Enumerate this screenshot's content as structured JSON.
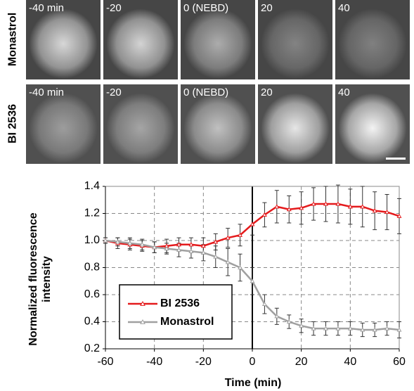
{
  "panels": {
    "rows": [
      {
        "label": "Monastrol",
        "frames": [
          "-40 min",
          "-20",
          "0 (NEBD)",
          "20",
          "40"
        ]
      },
      {
        "label": "BI 2536",
        "frames": [
          "-40 min",
          "-20",
          "0 (NEBD)",
          "20",
          "40"
        ]
      }
    ]
  },
  "chart_data": {
    "type": "line",
    "x_label": "Time (min)",
    "y_label": "Normalized fluorescence intensity",
    "x": [
      -60,
      -55,
      -50,
      -45,
      -40,
      -35,
      -30,
      -25,
      -20,
      -15,
      -10,
      -5,
      0,
      5,
      10,
      15,
      20,
      25,
      30,
      35,
      40,
      45,
      50,
      55,
      60
    ],
    "series": [
      {
        "name": "BI 2536",
        "color": "#e41a1c",
        "values": [
          1.0,
          0.98,
          0.97,
          0.96,
          0.95,
          0.96,
          0.97,
          0.97,
          0.96,
          0.99,
          1.02,
          1.04,
          1.12,
          1.19,
          1.25,
          1.23,
          1.24,
          1.27,
          1.27,
          1.27,
          1.25,
          1.25,
          1.22,
          1.21,
          1.18
        ],
        "errors": [
          0.02,
          0.04,
          0.04,
          0.04,
          0.04,
          0.05,
          0.05,
          0.05,
          0.06,
          0.06,
          0.07,
          0.08,
          0.08,
          0.09,
          0.12,
          0.1,
          0.12,
          0.12,
          0.13,
          0.14,
          0.13,
          0.15,
          0.14,
          0.13,
          0.13
        ]
      },
      {
        "name": "Monastrol",
        "color": "#a0a0a0",
        "values": [
          1.0,
          0.99,
          0.98,
          0.97,
          0.95,
          0.94,
          0.93,
          0.92,
          0.91,
          0.88,
          0.84,
          0.8,
          0.7,
          0.53,
          0.44,
          0.4,
          0.37,
          0.35,
          0.35,
          0.35,
          0.35,
          0.34,
          0.34,
          0.35,
          0.34
        ],
        "errors": [
          0.02,
          0.03,
          0.04,
          0.04,
          0.04,
          0.04,
          0.05,
          0.05,
          0.06,
          0.08,
          0.1,
          0.1,
          0.1,
          0.07,
          0.06,
          0.05,
          0.05,
          0.05,
          0.05,
          0.05,
          0.05,
          0.05,
          0.05,
          0.05,
          0.06
        ]
      }
    ],
    "xlim": [
      -60,
      60
    ],
    "xticks": [
      -60,
      -40,
      -20,
      0,
      20,
      40,
      60
    ],
    "ylim": [
      0.2,
      1.4
    ],
    "yticks": [
      0.2,
      0.4,
      0.6,
      0.8,
      {
        "value": 1,
        "label": "1.0"
      },
      1.2,
      1.4
    ],
    "grid": true,
    "legend": "lower left"
  }
}
